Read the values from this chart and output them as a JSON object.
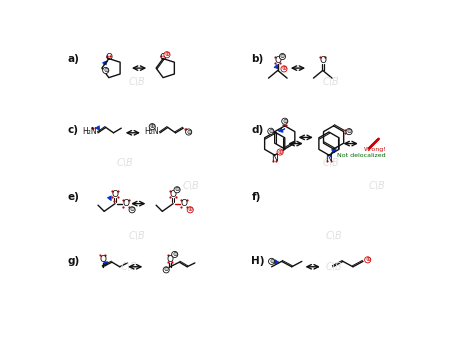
{
  "background_color": "#ffffff",
  "watermark_color": "#e0e0e0",
  "red": "#cc0000",
  "blue": "#0033cc",
  "green": "#006600",
  "black": "#111111",
  "sections": [
    "a)",
    "b)",
    "c)",
    "d)",
    "e)",
    "f)",
    "g)",
    "H)"
  ]
}
